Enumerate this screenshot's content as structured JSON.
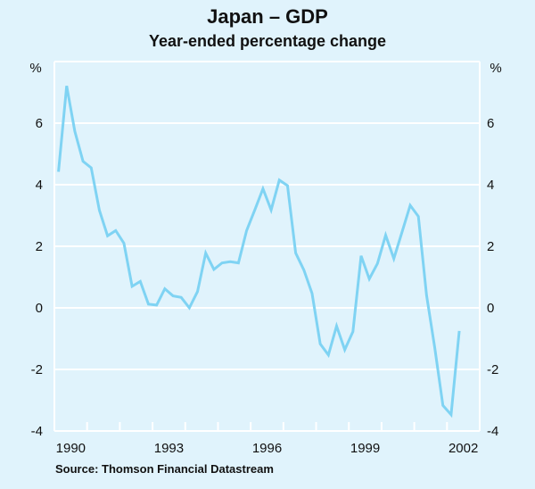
{
  "chart_data": {
    "type": "line",
    "title": "Japan – GDP",
    "subtitle": "Year-ended percentage change",
    "ylabel_left": "%",
    "ylabel_right": "%",
    "source": "Source: Thomson Financial Datastream",
    "ylim": [
      -4,
      8
    ],
    "yticks": [
      -4,
      -2,
      0,
      2,
      4,
      6
    ],
    "ytick_labels": [
      "-4",
      "-2",
      "0",
      "2",
      "4",
      "6"
    ],
    "xlim": [
      1990,
      2003
    ],
    "xtick_labels": [
      "1990",
      "1993",
      "1996",
      "1999",
      "2002"
    ],
    "grid": true,
    "line_color": "#7fd3f3",
    "series": [
      {
        "name": "Japan GDP year-ended % change",
        "start": "1990 Q1",
        "frequency": "quarterly",
        "values": [
          4.42,
          7.21,
          5.73,
          4.76,
          4.55,
          3.17,
          2.34,
          2.51,
          2.1,
          0.7,
          0.86,
          0.12,
          0.09,
          0.62,
          0.39,
          0.34,
          0.0,
          0.53,
          1.78,
          1.25,
          1.46,
          1.5,
          1.46,
          2.51,
          3.18,
          3.87,
          3.18,
          4.15,
          3.97,
          1.78,
          1.23,
          0.47,
          -1.17,
          -1.53,
          -0.59,
          -1.36,
          -0.77,
          1.69,
          0.94,
          1.44,
          2.36,
          1.6,
          2.46,
          3.33,
          2.97,
          0.41,
          -1.29,
          -3.17,
          -3.47,
          -0.75
        ]
      }
    ]
  }
}
